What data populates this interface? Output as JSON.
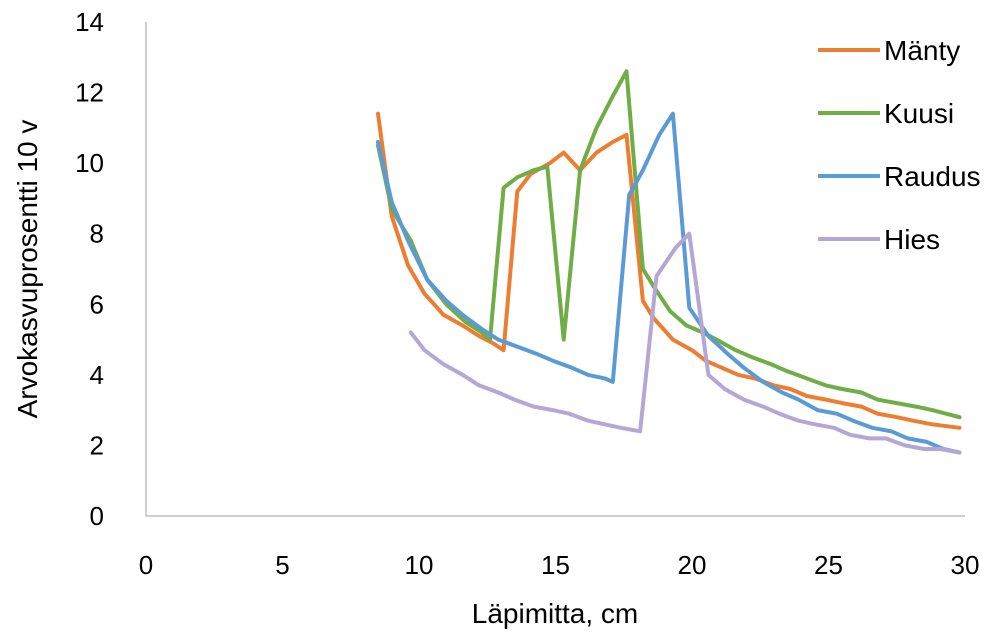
{
  "chart_data": {
    "type": "line",
    "xlabel": "Läpimitta, cm",
    "ylabel": "Arvokasvuprosentti 10 v",
    "xlim": [
      0,
      30
    ],
    "ylim": [
      0,
      14
    ],
    "x_ticks": [
      0,
      5,
      10,
      15,
      20,
      25,
      30
    ],
    "y_ticks": [
      0,
      2,
      4,
      6,
      8,
      10,
      12,
      14
    ],
    "grid": false,
    "legend_position": "right",
    "series": [
      {
        "name": "Mänty",
        "color": "#ED7D31",
        "points": [
          [
            8.5,
            11.4
          ],
          [
            9.0,
            8.5
          ],
          [
            9.6,
            7.1
          ],
          [
            10.2,
            6.3
          ],
          [
            10.9,
            5.7
          ],
          [
            11.6,
            5.4
          ],
          [
            12.2,
            5.1
          ],
          [
            12.7,
            4.9
          ],
          [
            13.1,
            4.7
          ],
          [
            13.6,
            9.2
          ],
          [
            14.1,
            9.7
          ],
          [
            14.8,
            10.0
          ],
          [
            15.3,
            10.3
          ],
          [
            15.9,
            9.8
          ],
          [
            16.5,
            10.3
          ],
          [
            17.1,
            10.6
          ],
          [
            17.6,
            10.8
          ],
          [
            18.2,
            6.1
          ],
          [
            18.6,
            5.6
          ],
          [
            19.3,
            5.0
          ],
          [
            20.0,
            4.7
          ],
          [
            20.5,
            4.4
          ],
          [
            21.1,
            4.2
          ],
          [
            21.7,
            4.0
          ],
          [
            22.3,
            3.9
          ],
          [
            23.0,
            3.7
          ],
          [
            23.6,
            3.6
          ],
          [
            24.2,
            3.4
          ],
          [
            24.9,
            3.3
          ],
          [
            25.5,
            3.2
          ],
          [
            26.2,
            3.1
          ],
          [
            26.8,
            2.9
          ],
          [
            27.5,
            2.8
          ],
          [
            28.1,
            2.7
          ],
          [
            28.8,
            2.6
          ],
          [
            29.8,
            2.5
          ]
        ]
      },
      {
        "name": "Kuusi",
        "color": "#70AD47",
        "points": [
          [
            8.5,
            10.5
          ],
          [
            9.0,
            8.7
          ],
          [
            9.7,
            7.8
          ],
          [
            10.3,
            6.7
          ],
          [
            11.0,
            6.0
          ],
          [
            11.7,
            5.5
          ],
          [
            12.3,
            5.2
          ],
          [
            12.6,
            5.0
          ],
          [
            13.1,
            9.3
          ],
          [
            13.6,
            9.6
          ],
          [
            14.2,
            9.8
          ],
          [
            14.7,
            9.9
          ],
          [
            15.3,
            5.0
          ],
          [
            15.9,
            9.8
          ],
          [
            16.5,
            11.0
          ],
          [
            17.1,
            11.9
          ],
          [
            17.6,
            12.6
          ],
          [
            18.2,
            7.0
          ],
          [
            18.6,
            6.5
          ],
          [
            19.2,
            5.8
          ],
          [
            19.8,
            5.4
          ],
          [
            20.4,
            5.2
          ],
          [
            20.9,
            5.0
          ],
          [
            21.6,
            4.7
          ],
          [
            22.2,
            4.5
          ],
          [
            22.9,
            4.3
          ],
          [
            23.5,
            4.1
          ],
          [
            24.2,
            3.9
          ],
          [
            24.9,
            3.7
          ],
          [
            25.5,
            3.6
          ],
          [
            26.2,
            3.5
          ],
          [
            26.8,
            3.3
          ],
          [
            27.5,
            3.2
          ],
          [
            28.2,
            3.1
          ],
          [
            28.8,
            3.0
          ],
          [
            29.8,
            2.8
          ]
        ]
      },
      {
        "name": "Raudus",
        "color": "#5B9BD5",
        "points": [
          [
            8.5,
            10.6
          ],
          [
            9.0,
            8.9
          ],
          [
            9.6,
            7.8
          ],
          [
            10.3,
            6.7
          ],
          [
            11.0,
            6.1
          ],
          [
            11.6,
            5.7
          ],
          [
            12.3,
            5.3
          ],
          [
            12.9,
            5.0
          ],
          [
            13.6,
            4.8
          ],
          [
            14.3,
            4.6
          ],
          [
            14.9,
            4.4
          ],
          [
            15.6,
            4.2
          ],
          [
            16.2,
            4.0
          ],
          [
            16.8,
            3.9
          ],
          [
            17.1,
            3.8
          ],
          [
            17.7,
            9.1
          ],
          [
            18.2,
            9.8
          ],
          [
            18.8,
            10.8
          ],
          [
            19.3,
            11.4
          ],
          [
            19.9,
            5.9
          ],
          [
            20.6,
            5.1
          ],
          [
            21.3,
            4.6
          ],
          [
            21.9,
            4.2
          ],
          [
            22.6,
            3.8
          ],
          [
            23.3,
            3.5
          ],
          [
            23.9,
            3.3
          ],
          [
            24.6,
            3.0
          ],
          [
            25.3,
            2.9
          ],
          [
            25.9,
            2.7
          ],
          [
            26.6,
            2.5
          ],
          [
            27.3,
            2.4
          ],
          [
            27.9,
            2.2
          ],
          [
            28.6,
            2.1
          ],
          [
            29.2,
            1.9
          ],
          [
            29.8,
            1.8
          ]
        ]
      },
      {
        "name": "Hies",
        "color": "#B4A7D6",
        "points": [
          [
            9.7,
            5.2
          ],
          [
            10.2,
            4.7
          ],
          [
            10.9,
            4.3
          ],
          [
            11.6,
            4.0
          ],
          [
            12.2,
            3.7
          ],
          [
            12.9,
            3.5
          ],
          [
            13.5,
            3.3
          ],
          [
            14.2,
            3.1
          ],
          [
            14.9,
            3.0
          ],
          [
            15.5,
            2.9
          ],
          [
            16.2,
            2.7
          ],
          [
            16.8,
            2.6
          ],
          [
            17.4,
            2.5
          ],
          [
            18.1,
            2.4
          ],
          [
            18.7,
            6.8
          ],
          [
            19.4,
            7.6
          ],
          [
            19.9,
            8.0
          ],
          [
            20.6,
            4.0
          ],
          [
            21.2,
            3.6
          ],
          [
            21.9,
            3.3
          ],
          [
            22.6,
            3.1
          ],
          [
            23.2,
            2.9
          ],
          [
            23.9,
            2.7
          ],
          [
            24.5,
            2.6
          ],
          [
            25.2,
            2.5
          ],
          [
            25.8,
            2.3
          ],
          [
            26.5,
            2.2
          ],
          [
            27.1,
            2.2
          ],
          [
            27.8,
            2.0
          ],
          [
            28.5,
            1.9
          ],
          [
            29.1,
            1.9
          ],
          [
            29.8,
            1.8
          ]
        ]
      }
    ]
  }
}
